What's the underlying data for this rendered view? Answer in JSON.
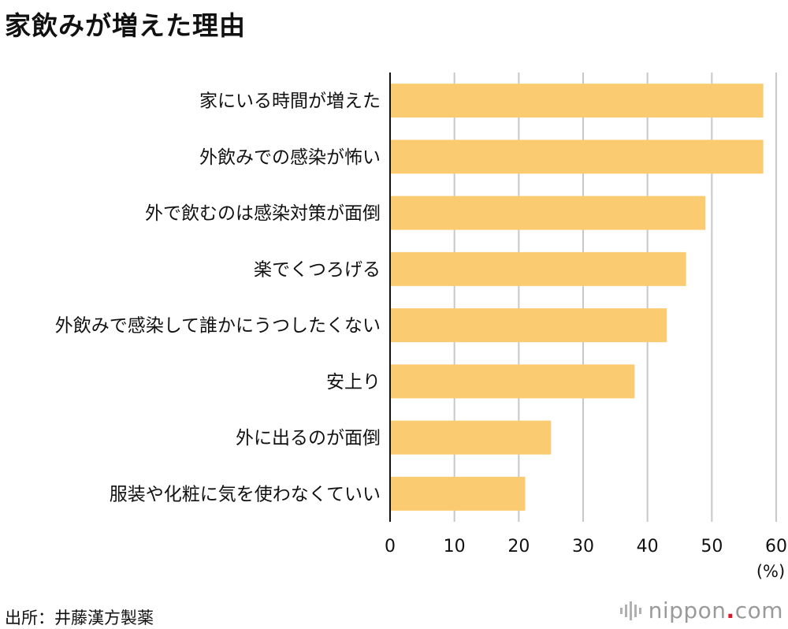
{
  "title": "家飲みが増えた理由",
  "source": "出所：井藤漢方製薬",
  "brand": {
    "name": "nippon",
    "dot": ".",
    "tld": "com"
  },
  "chart_data": {
    "type": "bar",
    "orientation": "horizontal",
    "categories": [
      "家にいる時間が増えた",
      "外飲みでの感染が怖い",
      "外で飲むのは感染対策が面倒",
      "楽でくつろげる",
      "外飲みで感染して誰かにうつしたくない",
      "安上り",
      "外に出るのが面倒",
      "服装や化粧に気を使わなくていい"
    ],
    "values": [
      58,
      58,
      49,
      46,
      43,
      38,
      25,
      21
    ],
    "x_ticks": [
      0,
      10,
      20,
      30,
      40,
      50,
      60
    ],
    "xlim": [
      0,
      60
    ],
    "unit_label": "(%)",
    "bar_color": "#fbcb72",
    "grid": true
  }
}
